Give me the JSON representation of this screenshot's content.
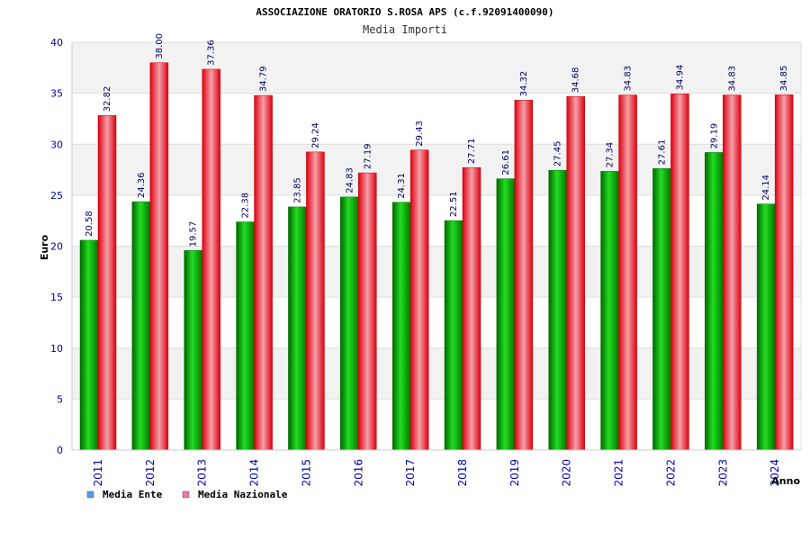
{
  "chart_data": {
    "type": "bar",
    "title": "ASSOCIAZIONE ORATORIO S.ROSA APS (c.f.92091400090)",
    "subtitle": "Media Importi",
    "xlabel": "Anno",
    "ylabel": "Euro",
    "ylim": [
      0,
      40
    ],
    "yticks": [
      "0",
      "5",
      "10",
      "15",
      "20",
      "25",
      "30",
      "35",
      "40"
    ],
    "categories": [
      "2011",
      "2012",
      "2013",
      "2014",
      "2015",
      "2016",
      "2017",
      "2018",
      "2019",
      "2020",
      "2021",
      "2022",
      "2023",
      "2024"
    ],
    "series": [
      {
        "name": "Media Ente",
        "color": "#00aa00",
        "values": [
          20.58,
          24.36,
          19.57,
          22.38,
          23.85,
          24.83,
          24.31,
          22.51,
          26.61,
          27.45,
          27.34,
          27.61,
          29.19,
          24.14
        ],
        "labels": [
          "20.58",
          "24.36",
          "19.57",
          "22.38",
          "23.85",
          "24.83",
          "24.31",
          "22.51",
          "26.61",
          "27.45",
          "27.34",
          "27.61",
          "29.19",
          "24.14"
        ]
      },
      {
        "name": "Media Nazionale",
        "color": "#ee0022",
        "values": [
          32.82,
          38.0,
          37.36,
          34.79,
          29.24,
          27.19,
          29.43,
          27.71,
          34.32,
          34.68,
          34.83,
          34.94,
          34.83,
          34.85
        ],
        "labels": [
          "32.82",
          "38.00",
          "37.36",
          "34.79",
          "29.24",
          "27.19",
          "29.43",
          "27.71",
          "34.32",
          "34.68",
          "34.83",
          "34.94",
          "34.83",
          "34.85"
        ]
      }
    ],
    "legend": {
      "placement": "bottom-left",
      "entries": [
        {
          "label": "Media Ente",
          "color": "#5599ee"
        },
        {
          "label": "Media Nazionale",
          "color": "#ee77aa"
        }
      ]
    },
    "grid": true,
    "background_bands": [
      "#f2f2f2",
      "#ffffff"
    ]
  }
}
